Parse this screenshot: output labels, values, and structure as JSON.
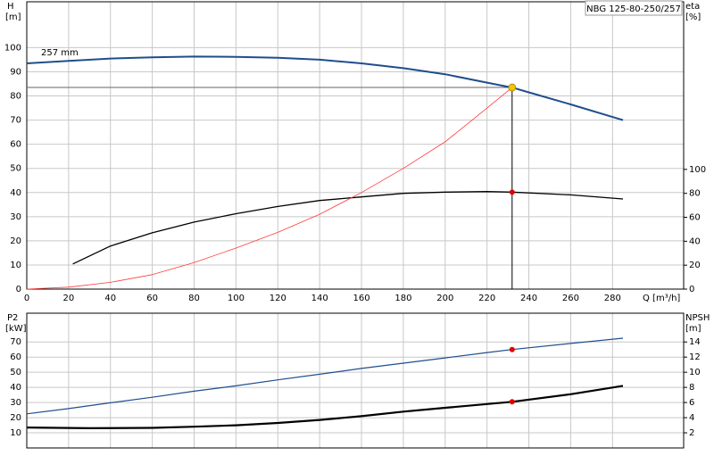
{
  "chart_data": [
    {
      "type": "line",
      "title": "NBG 125-80-250/257",
      "ylabel": "H",
      "yunit": "[m]",
      "y2label": "eta",
      "y2unit": "[%]",
      "xlabel": "Q [m³/h]",
      "xlim": [
        0,
        314
      ],
      "xticks": [
        0,
        20,
        40,
        60,
        80,
        100,
        120,
        140,
        160,
        180,
        200,
        220,
        240,
        260,
        280
      ],
      "ylim": [
        0,
        119
      ],
      "yticks": [
        0,
        10,
        20,
        30,
        40,
        50,
        60,
        70,
        80,
        90,
        100
      ],
      "y2lim": [
        0,
        240
      ],
      "y2ticks": [
        0,
        20,
        40,
        60,
        80,
        100
      ],
      "grid": true,
      "show_xtick_labels": true,
      "operating_point": {
        "x": 232,
        "y": 83.5,
        "color": "#f5c400"
      },
      "series": [
        {
          "name": "257 mm",
          "color": "#1f4e8c",
          "width": 2,
          "x": [
            0,
            20,
            40,
            60,
            80,
            100,
            120,
            140,
            160,
            180,
            200,
            220,
            232,
            240,
            260,
            285
          ],
          "values": [
            93.5,
            94.5,
            95.5,
            96,
            96.3,
            96.2,
            95.8,
            95,
            93.5,
            91.5,
            89,
            85.5,
            83.5,
            81.5,
            76.5,
            70
          ]
        },
        {
          "color": "#000000",
          "width": 1.3,
          "axis": "y2",
          "x": [
            22,
            40,
            60,
            80,
            100,
            120,
            140,
            160,
            180,
            200,
            220,
            232,
            260,
            285
          ],
          "values": [
            21,
            36,
            47,
            56,
            63,
            69,
            74,
            77,
            80,
            81,
            81.5,
            81,
            78.7,
            75.3
          ]
        },
        {
          "color": "#ff3b3b",
          "width": 0.8,
          "x": [
            0,
            20,
            40,
            60,
            80,
            100,
            120,
            140,
            160,
            180,
            200,
            220,
            232
          ],
          "values": [
            0,
            0.8,
            2.8,
            6,
            11,
            17,
            23.5,
            31,
            40,
            50,
            61,
            75,
            83.5
          ]
        },
        {
          "color": "#e00000",
          "marker": true,
          "axis": "y2",
          "x": [
            232
          ],
          "values": [
            81
          ]
        }
      ]
    },
    {
      "type": "line",
      "ylabel": "P2",
      "yunit": "[kW]",
      "y2label": "NPSH",
      "y2unit": "[m]",
      "xlim": [
        0,
        314
      ],
      "xticks": [
        0,
        20,
        40,
        60,
        80,
        100,
        120,
        140,
        160,
        180,
        200,
        220,
        240,
        260,
        280
      ],
      "ylim": [
        0,
        89
      ],
      "yticks": [
        10,
        20,
        30,
        40,
        50,
        60,
        70
      ],
      "y2lim": [
        0,
        17.8
      ],
      "y2ticks": [
        2,
        4,
        6,
        8,
        10,
        12,
        14
      ],
      "grid": true,
      "show_xtick_labels": false,
      "series": [
        {
          "color": "#1f4e8c",
          "width": 1.2,
          "x": [
            0,
            20,
            40,
            60,
            80,
            100,
            120,
            140,
            160,
            180,
            200,
            220,
            232,
            260,
            285
          ],
          "values": [
            22.5,
            26,
            29.8,
            33.5,
            37.5,
            41,
            45,
            48.7,
            52.5,
            56,
            59.5,
            63,
            65,
            69,
            72.5
          ]
        },
        {
          "color": "#000000",
          "width": 2.2,
          "axis": "y2",
          "x": [
            0,
            30,
            60,
            80,
            100,
            120,
            140,
            160,
            180,
            200,
            220,
            232,
            260,
            285
          ],
          "values": [
            2.7,
            2.6,
            2.65,
            2.8,
            3.0,
            3.3,
            3.7,
            4.2,
            4.8,
            5.3,
            5.8,
            6.1,
            7.1,
            8.2
          ]
        },
        {
          "color": "#e00000",
          "marker": true,
          "x": [
            232
          ],
          "values": [
            65
          ]
        },
        {
          "color": "#e00000",
          "marker": true,
          "axis": "y2",
          "x": [
            232
          ],
          "values": [
            6.1
          ]
        }
      ]
    }
  ]
}
